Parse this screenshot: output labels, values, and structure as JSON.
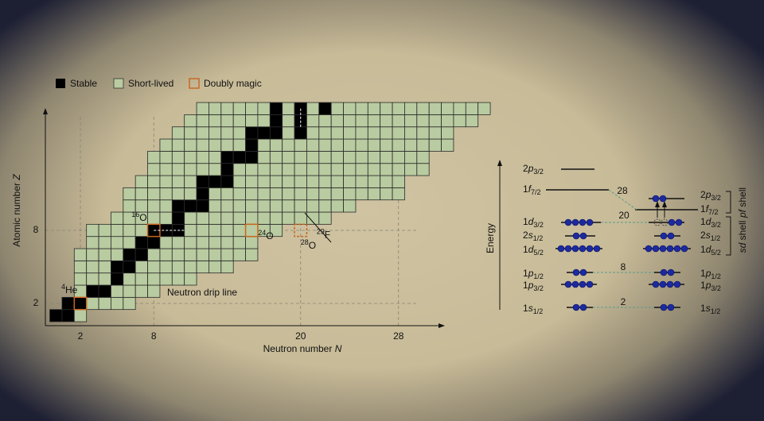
{
  "legend": [
    "Stable",
    "Short-lived",
    "Doubly magic"
  ],
  "nuclide_chart": {
    "x_label": "Neutron number",
    "x_symbol": "N",
    "y_label": "Atomic number",
    "y_symbol": "Z",
    "xticks": [
      2,
      8,
      20,
      28
    ],
    "yticks": [
      2,
      8
    ],
    "drip_line_label": "Neutron drip line",
    "rows": [
      {
        "Z": 1,
        "N": [
          0,
          2
        ],
        "stable": [
          0,
          1
        ]
      },
      {
        "Z": 2,
        "N": [
          1,
          6
        ],
        "stable": [
          1,
          2
        ]
      },
      {
        "Z": 3,
        "N": [
          2,
          8
        ],
        "stable": [
          3,
          4
        ]
      },
      {
        "Z": 4,
        "N": [
          2,
          11
        ],
        "stable": [
          5
        ]
      },
      {
        "Z": 5,
        "N": [
          2,
          14
        ],
        "stable": [
          5,
          6
        ]
      },
      {
        "Z": 6,
        "N": [
          2,
          16
        ],
        "stable": [
          6,
          7
        ]
      },
      {
        "Z": 7,
        "N": [
          3,
          16
        ],
        "stable": [
          7,
          8
        ]
      },
      {
        "Z": 8,
        "N": [
          3,
          18
        ],
        "stable": [
          8,
          9,
          10
        ]
      },
      {
        "Z": 9,
        "N": [
          5,
          22
        ],
        "stable": [
          10
        ]
      },
      {
        "Z": 10,
        "N": [
          6,
          24
        ],
        "stable": [
          10,
          11,
          12
        ]
      },
      {
        "Z": 11,
        "N": [
          6,
          28
        ],
        "stable": [
          12
        ]
      },
      {
        "Z": 12,
        "N": [
          7,
          28
        ],
        "stable": [
          12,
          13,
          14
        ]
      },
      {
        "Z": 13,
        "N": [
          8,
          30
        ],
        "stable": [
          14
        ]
      },
      {
        "Z": 14,
        "N": [
          8,
          30
        ],
        "stable": [
          14,
          15,
          16
        ]
      },
      {
        "Z": 15,
        "N": [
          9,
          32
        ],
        "stable": [
          16
        ]
      },
      {
        "Z": 16,
        "N": [
          10,
          32
        ],
        "stable": [
          16,
          17,
          18,
          20
        ]
      },
      {
        "Z": 17,
        "N": [
          11,
          34
        ],
        "stable": [
          18,
          20
        ]
      },
      {
        "Z": 18,
        "N": [
          12,
          35
        ],
        "stable": [
          18,
          20,
          22
        ]
      }
    ],
    "isotopes": [
      {
        "mass": "4",
        "symbol": "He",
        "N": 2,
        "Z": 2,
        "box": "solid"
      },
      {
        "mass": "16",
        "symbol": "O",
        "N": 8,
        "Z": 8,
        "box": "solid"
      },
      {
        "mass": "24",
        "symbol": "O",
        "N": 16,
        "Z": 8,
        "box": "solid"
      },
      {
        "mass": "28",
        "symbol": "O",
        "N": 20,
        "Z": 8,
        "box": "dashed"
      },
      {
        "mass": "29",
        "symbol": "F",
        "N": 20,
        "Z": 9,
        "box": "none"
      }
    ]
  },
  "levels": {
    "energy_label": "Energy",
    "gaps": [
      "2",
      "8",
      "20",
      "28"
    ],
    "shells": [
      {
        "name": "sd",
        "word": "shell"
      },
      {
        "name": "pf",
        "word": "shell"
      }
    ],
    "left": [
      {
        "n": "2",
        "l": "p",
        "j": "3/2"
      },
      {
        "n": "1",
        "l": "f",
        "j": "7/2"
      },
      {
        "n": "1",
        "l": "d",
        "j": "3/2"
      },
      {
        "n": "2",
        "l": "s",
        "j": "1/2"
      },
      {
        "n": "1",
        "l": "d",
        "j": "5/2"
      },
      {
        "n": "1",
        "l": "p",
        "j": "1/2"
      },
      {
        "n": "1",
        "l": "p",
        "j": "3/2"
      },
      {
        "n": "1",
        "l": "s",
        "j": "1/2"
      }
    ],
    "right": [
      {
        "n": "2",
        "l": "p",
        "j": "3/2"
      },
      {
        "n": "1",
        "l": "f",
        "j": "7/2"
      },
      {
        "n": "1",
        "l": "d",
        "j": "3/2"
      },
      {
        "n": "2",
        "l": "s",
        "j": "1/2"
      },
      {
        "n": "1",
        "l": "d",
        "j": "5/2"
      },
      {
        "n": "1",
        "l": "p",
        "j": "1/2"
      },
      {
        "n": "1",
        "l": "p",
        "j": "3/2"
      },
      {
        "n": "1",
        "l": "s",
        "j": "1/2"
      }
    ]
  }
}
